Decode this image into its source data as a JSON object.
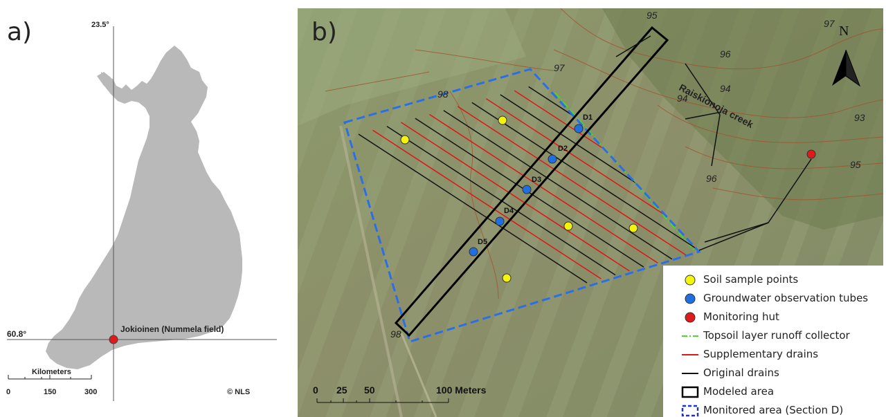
{
  "panel_a": {
    "label": "a)",
    "meridian_label": "23.5°",
    "parallel_label": "60.8°",
    "site_label": "Jokioinen (Nummela field)",
    "scalebar": {
      "title": "Kilometers",
      "ticks": [
        "0",
        "150",
        "300"
      ]
    },
    "credit": "© NLS",
    "colors": {
      "land": "#b9b9b9",
      "site": "#e0191b"
    }
  },
  "panel_b": {
    "label": "b)",
    "north_label": "N",
    "creek_label": "Raiskionoja creek",
    "contour_labels": [
      "95",
      "96",
      "97",
      "97",
      "98",
      "94",
      "94",
      "93",
      "95",
      "96",
      "98"
    ],
    "tubes": [
      "D1",
      "D2",
      "D3",
      "D4",
      "D5"
    ],
    "scalebar": {
      "ticks": [
        "0",
        "25",
        "50",
        "100 Meters"
      ]
    },
    "legend": [
      {
        "symbol": "yellow-dot",
        "label": "Soil sample points"
      },
      {
        "symbol": "blue-dot",
        "label": "Groundwater observation tubes"
      },
      {
        "symbol": "red-dot",
        "label": "Monitoring hut"
      },
      {
        "symbol": "green-dashdot-line",
        "label": "Topsoil layer runoff collector"
      },
      {
        "symbol": "red-line",
        "label": "Supplementary drains"
      },
      {
        "symbol": "black-line",
        "label": "Original drains"
      },
      {
        "symbol": "black-rectangle",
        "label": "Modeled area"
      },
      {
        "symbol": "blue-dashed-rectangle",
        "label": "Monitored area (Section D)"
      }
    ],
    "colors": {
      "soil": "#f5f50a",
      "tube": "#1f6fe0",
      "hut": "#e0191b",
      "collector": "#44dd22",
      "supplementary": "#e01515",
      "original": "#111111",
      "monitored": "#2a6ee8",
      "contour": "#a0522d"
    }
  }
}
